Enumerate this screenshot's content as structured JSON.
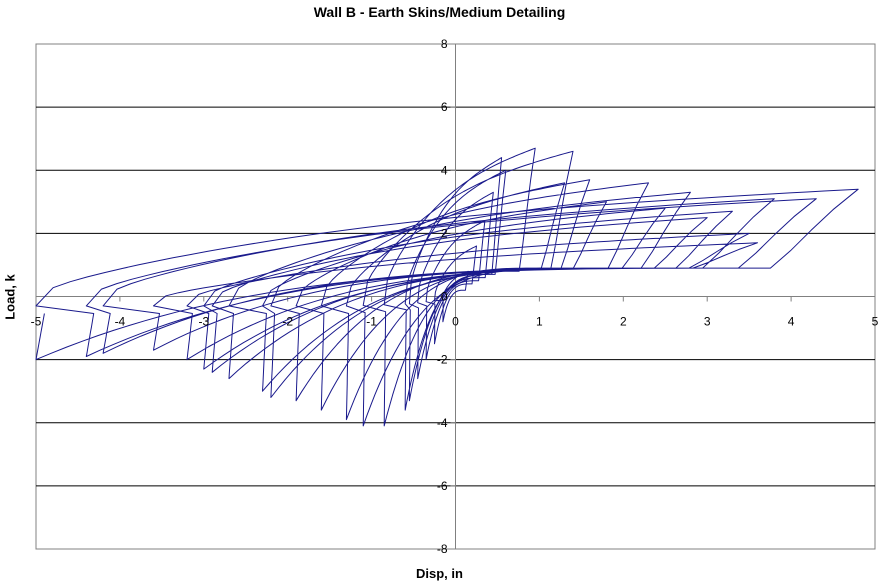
{
  "chart_data": {
    "type": "line",
    "title": "Wall B - Earth Skins/Medium Detailing",
    "xlabel": "Disp, in",
    "ylabel": "Load, k",
    "xlim": [
      -5,
      5
    ],
    "ylim": [
      -8,
      8
    ],
    "x_ticks": [
      -5,
      -4,
      -3,
      -2,
      -1,
      0,
      1,
      2,
      3,
      4,
      5
    ],
    "y_ticks": [
      -8,
      -6,
      -4,
      -2,
      0,
      2,
      4,
      6,
      8
    ],
    "grid": {
      "horizontal": true,
      "vertical": false
    },
    "legend": "none",
    "line_color": "#1a1a8c",
    "series": [
      {
        "loops": [
          {
            "x_max": 0.15,
            "x_min": -0.15,
            "peak_pos": 0.8,
            "peak_neg": -0.8,
            "res_pos": 0.2,
            "res_neg": -0.2
          },
          {
            "x_max": 0.25,
            "x_min": -0.25,
            "peak_pos": 1.6,
            "peak_neg": -1.5,
            "res_pos": 0.4,
            "res_neg": -0.4
          },
          {
            "x_max": 0.35,
            "x_min": -0.35,
            "peak_pos": 2.4,
            "peak_neg": -2.0,
            "res_pos": 0.5,
            "res_neg": -0.5
          },
          {
            "x_max": 0.45,
            "x_min": -0.45,
            "peak_pos": 3.3,
            "peak_neg": -2.6,
            "res_pos": 0.6,
            "res_neg": -0.6
          },
          {
            "x_max": 0.55,
            "x_min": -0.55,
            "peak_pos": 4.4,
            "peak_neg": -3.3,
            "res_pos": 0.7,
            "res_neg": -0.7
          },
          {
            "x_max": 0.6,
            "x_min": -0.6,
            "peak_pos": 4.0,
            "peak_neg": -3.6,
            "res_pos": 0.7,
            "res_neg": -0.7
          },
          {
            "x_max": 0.95,
            "x_min": -0.85,
            "peak_pos": 4.7,
            "peak_neg": -4.1,
            "res_pos": 0.8,
            "res_neg": -0.8
          },
          {
            "x_max": 1.4,
            "x_min": -1.1,
            "peak_pos": 4.6,
            "peak_neg": -4.1,
            "res_pos": 0.85,
            "res_neg": -0.85
          },
          {
            "x_max": 1.3,
            "x_min": -1.3,
            "peak_pos": 3.6,
            "peak_neg": -3.9,
            "res_pos": 0.9,
            "res_neg": -0.9
          },
          {
            "x_max": 1.6,
            "x_min": -1.6,
            "peak_pos": 3.7,
            "peak_neg": -3.6,
            "res_pos": 0.9,
            "res_neg": -0.9
          },
          {
            "x_max": 1.8,
            "x_min": -1.9,
            "peak_pos": 3.0,
            "peak_neg": -3.3,
            "res_pos": 0.9,
            "res_neg": -0.9
          },
          {
            "x_max": 2.3,
            "x_min": -2.2,
            "peak_pos": 3.6,
            "peak_neg": -3.2,
            "res_pos": 0.9,
            "res_neg": -0.9
          },
          {
            "x_max": 2.5,
            "x_min": -2.3,
            "peak_pos": 2.8,
            "peak_neg": -3.0,
            "res_pos": 0.9,
            "res_neg": -0.9
          },
          {
            "x_max": 2.8,
            "x_min": -2.7,
            "peak_pos": 3.3,
            "peak_neg": -2.6,
            "res_pos": 0.9,
            "res_neg": -0.9
          },
          {
            "x_max": 3.0,
            "x_min": -2.9,
            "peak_pos": 2.5,
            "peak_neg": -2.4,
            "res_pos": 0.9,
            "res_neg": -0.9
          },
          {
            "x_max": 3.3,
            "x_min": -3.0,
            "peak_pos": 2.7,
            "peak_neg": -2.3,
            "res_pos": 0.9,
            "res_neg": -0.9
          },
          {
            "x_max": 3.5,
            "x_min": -3.2,
            "peak_pos": 2.0,
            "peak_neg": -2.0,
            "res_pos": 0.9,
            "res_neg": -0.9
          },
          {
            "x_max": 3.6,
            "x_min": -3.6,
            "peak_pos": 1.7,
            "peak_neg": -1.7,
            "res_pos": 0.9,
            "res_neg": -0.9
          },
          {
            "x_max": 3.8,
            "x_min": -4.2,
            "peak_pos": 3.1,
            "peak_neg": -1.8,
            "res_pos": 0.9,
            "res_neg": -0.9
          },
          {
            "x_max": 4.3,
            "x_min": -4.4,
            "peak_pos": 3.1,
            "peak_neg": -1.9,
            "res_pos": 0.9,
            "res_neg": -0.9
          },
          {
            "x_max": 4.8,
            "x_min": -5.0,
            "peak_pos": 3.4,
            "peak_neg": -2.0,
            "res_pos": 0.9,
            "res_neg": -0.9
          }
        ]
      }
    ]
  }
}
